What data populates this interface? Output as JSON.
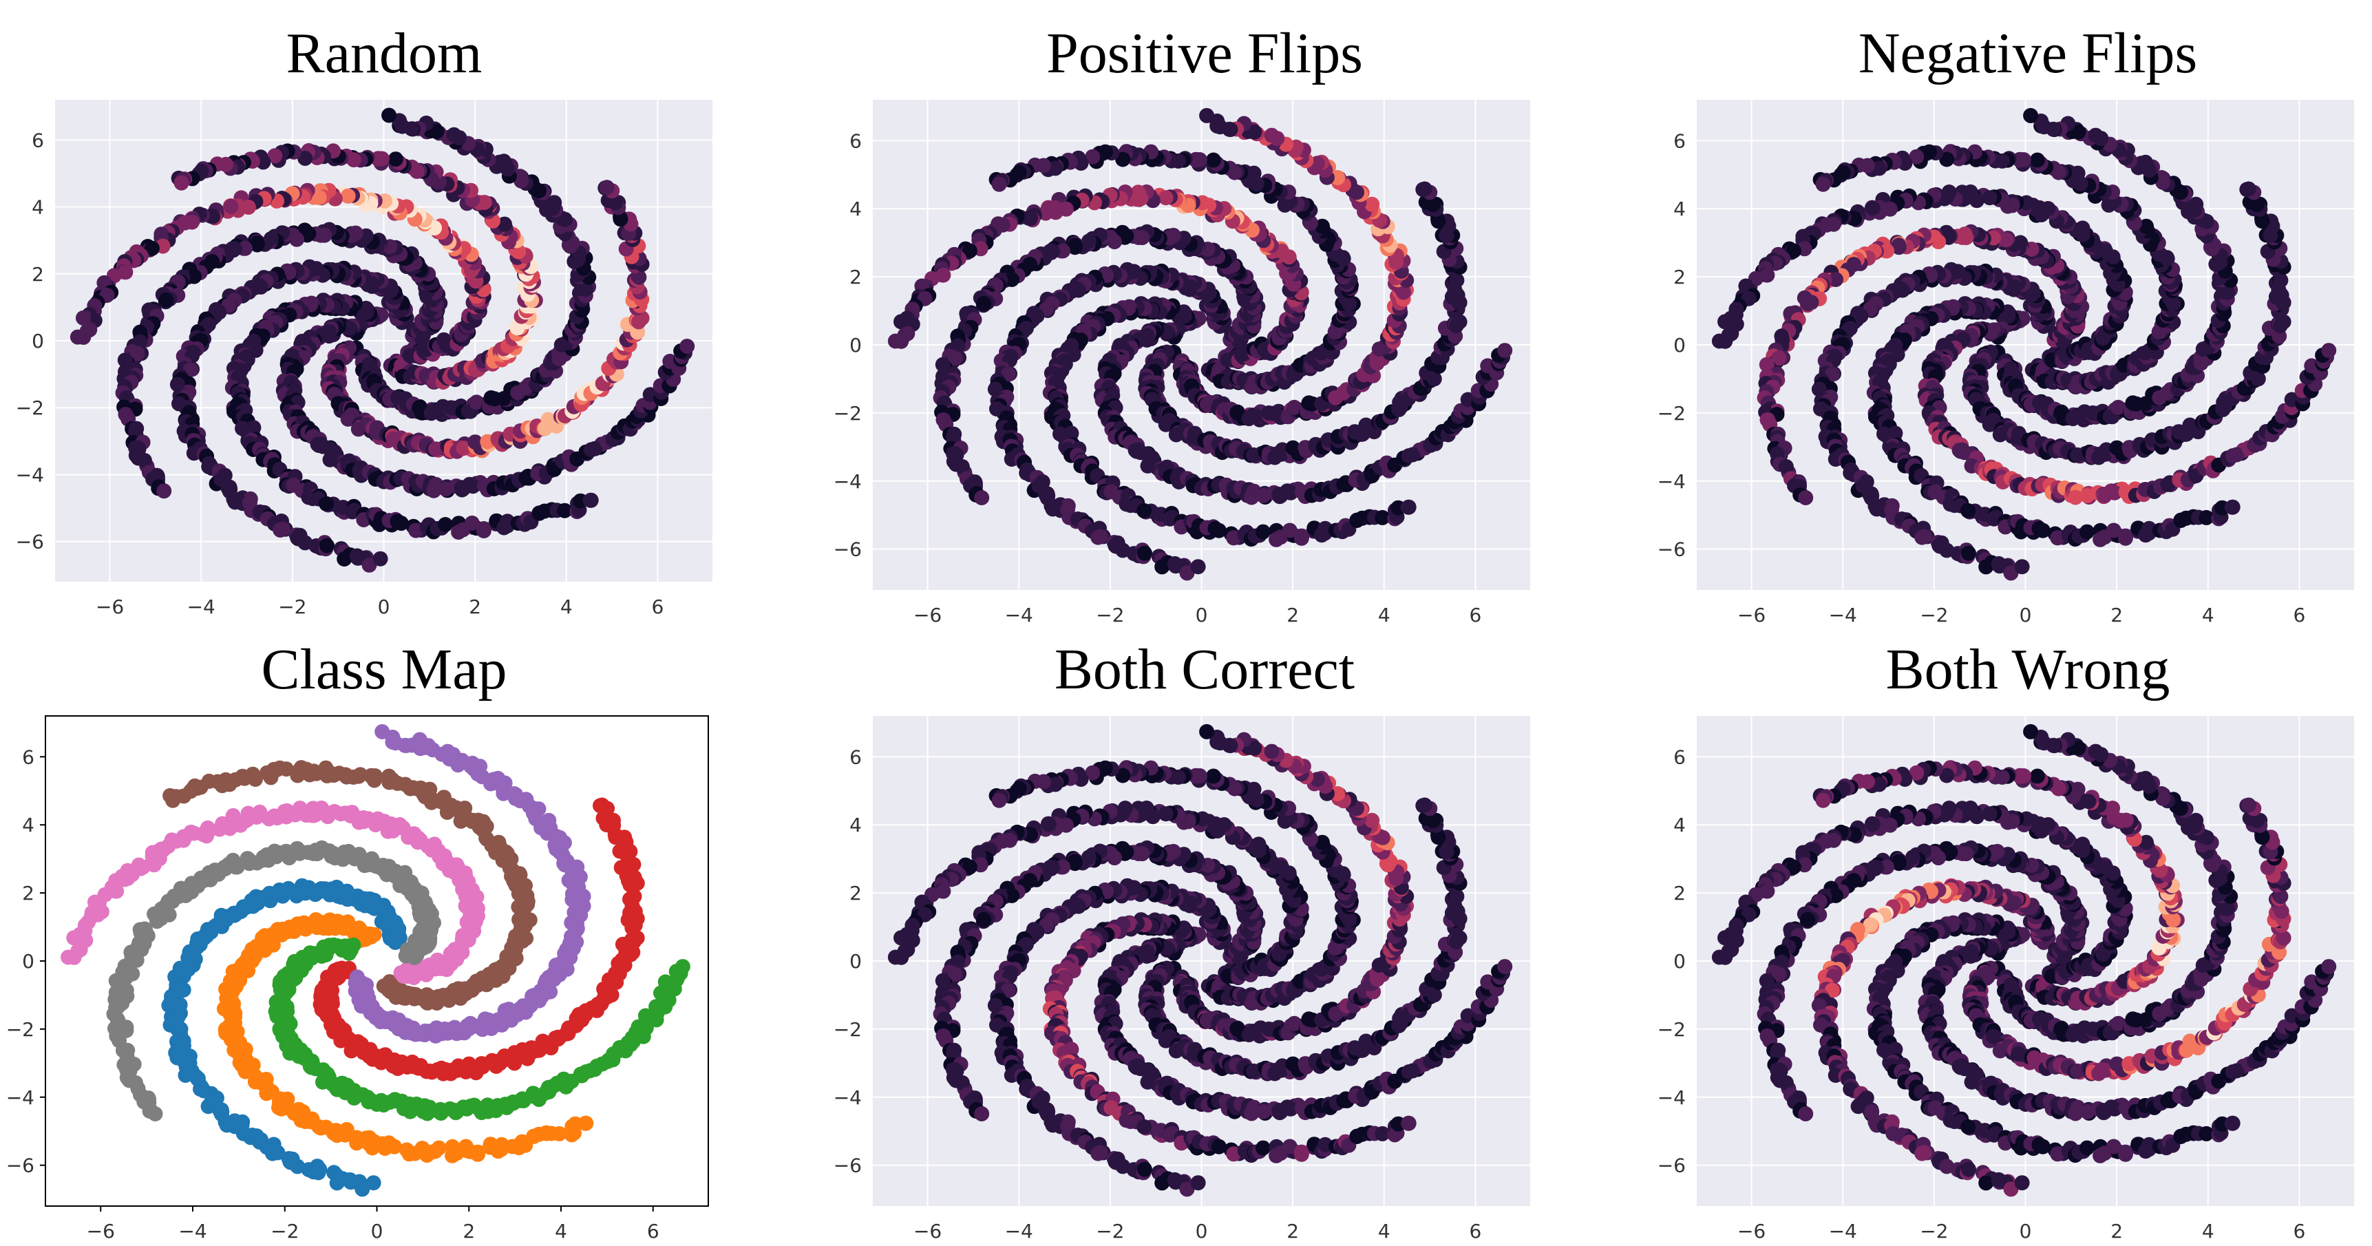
{
  "colors": {
    "seaborn_background": "#eaeaf2",
    "grid": "#ffffff",
    "class_palette": [
      "#1f77b4",
      "#ff7f0e",
      "#2ca02c",
      "#d62728",
      "#9467bd",
      "#8c564b",
      "#e377c2",
      "#7f7f7f"
    ],
    "heat_ramp": [
      "#0b0924",
      "#2a1540",
      "#4a1d55",
      "#7a2562",
      "#a8325f",
      "#d9485a",
      "#f3785f",
      "#fbb28e",
      "#fde3cf"
    ]
  },
  "chart_data": [
    {
      "type": "scatter",
      "title": "Random",
      "style": "seaborn-darkgrid",
      "xlabel": "",
      "ylabel": "",
      "xlim": [
        -7.2,
        7.2
      ],
      "ylim": [
        -7.2,
        7.2
      ],
      "xticks": [
        -6,
        -4,
        -2,
        0,
        2,
        4,
        6
      ],
      "yticks": [
        -6,
        -4,
        -2,
        0,
        2,
        4,
        6
      ],
      "points": "8-arm spiral, 8 classes x 400 points each, radius 0.6-6.5",
      "color_mode": "heat",
      "hot_arms": [
        3,
        5,
        6
      ],
      "hot_level": 0.55,
      "grid": true,
      "legend": "none"
    },
    {
      "type": "scatter",
      "title": "Positive Flips",
      "style": "seaborn-darkgrid",
      "xlabel": "",
      "ylabel": "",
      "xlim": [
        -7.2,
        7.2
      ],
      "ylim": [
        -7.2,
        7.2
      ],
      "xticks": [
        -6,
        -4,
        -2,
        0,
        2,
        4,
        6
      ],
      "yticks": [
        -6,
        -4,
        -2,
        0,
        2,
        4,
        6
      ],
      "color_mode": "heat",
      "hot_arms": [
        4,
        6
      ],
      "hot_level": 0.35,
      "grid": true,
      "legend": "none"
    },
    {
      "type": "scatter",
      "title": "Negative Flips",
      "style": "seaborn-darkgrid",
      "xlabel": "",
      "ylabel": "",
      "xlim": [
        -7.2,
        7.2
      ],
      "ylim": [
        -7.2,
        7.2
      ],
      "xticks": [
        -6,
        -4,
        -2,
        0,
        2,
        4,
        6
      ],
      "yticks": [
        -6,
        -4,
        -2,
        0,
        2,
        4,
        6
      ],
      "color_mode": "heat",
      "hot_arms": [
        2,
        7
      ],
      "hot_level": 0.3,
      "grid": true,
      "legend": "none"
    },
    {
      "type": "scatter",
      "title": "Class Map",
      "style": "classic",
      "xlabel": "",
      "ylabel": "",
      "xlim": [
        -7.2,
        7.2
      ],
      "ylim": [
        -7.2,
        7.2
      ],
      "xticks": [
        -6,
        -4,
        -2,
        0,
        2,
        4,
        6
      ],
      "yticks": [
        -6,
        -4,
        -2,
        0,
        2,
        4,
        6
      ],
      "color_mode": "class",
      "series": [
        {
          "class": 0,
          "color": "#1f77b4"
        },
        {
          "class": 1,
          "color": "#ff7f0e"
        },
        {
          "class": 2,
          "color": "#2ca02c"
        },
        {
          "class": 3,
          "color": "#d62728"
        },
        {
          "class": 4,
          "color": "#9467bd"
        },
        {
          "class": 5,
          "color": "#8c564b"
        },
        {
          "class": 6,
          "color": "#e377c2"
        },
        {
          "class": 7,
          "color": "#7f7f7f"
        }
      ],
      "grid": false,
      "legend": "none"
    },
    {
      "type": "scatter",
      "title": "Both Correct",
      "style": "seaborn-darkgrid",
      "xlabel": "",
      "ylabel": "",
      "xlim": [
        -7.2,
        7.2
      ],
      "ylim": [
        -7.2,
        7.2
      ],
      "xticks": [
        -6,
        -4,
        -2,
        0,
        2,
        4,
        6
      ],
      "yticks": [
        -6,
        -4,
        -2,
        0,
        2,
        4,
        6
      ],
      "color_mode": "heat",
      "hot_arms": [
        4,
        1
      ],
      "hot_level": 0.25,
      "grid": true,
      "legend": "none"
    },
    {
      "type": "scatter",
      "title": "Both Wrong",
      "style": "seaborn-darkgrid",
      "xlabel": "",
      "ylabel": "",
      "xlim": [
        -7.2,
        7.2
      ],
      "ylim": [
        -7.2,
        7.2
      ],
      "xticks": [
        -6,
        -4,
        -2,
        0,
        2,
        4,
        6
      ],
      "yticks": [
        -6,
        -4,
        -2,
        0,
        2,
        4,
        6
      ],
      "color_mode": "heat",
      "hot_arms": [
        0,
        3,
        5
      ],
      "hot_level": 0.45,
      "grid": true,
      "legend": "none"
    }
  ]
}
